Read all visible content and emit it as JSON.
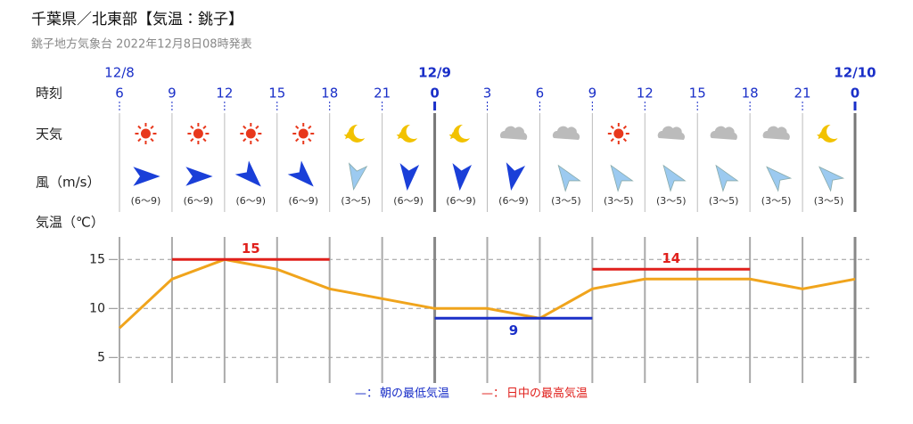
{
  "chart_data": {
    "type": "line",
    "title": "千葉県／北東部【気温：銚子】",
    "subtitle": "銚子地方気象台 2022年12月8日08時発表",
    "row_labels": {
      "time": "時刻",
      "weather": "天気",
      "wind": "風（m/s）",
      "temp": "気温（℃）"
    },
    "day_labels": [
      "12/8",
      null,
      null,
      null,
      null,
      null,
      "12/9",
      null,
      null,
      null,
      null,
      null,
      null,
      null,
      "12/10"
    ],
    "categories": [
      "6",
      "9",
      "12",
      "15",
      "18",
      "21",
      "0",
      "3",
      "6",
      "9",
      "12",
      "15",
      "18",
      "21",
      "0"
    ],
    "wind_labels": [
      "(6～9)",
      "(6～9)",
      "(6～9)",
      "(6～9)",
      "(3～5)",
      "(6～9)",
      "(6～9)",
      "(6～9)",
      "(3～5)",
      "(3～5)",
      "(3～5)",
      "(3～5)",
      "(3～5)",
      "(3～5)"
    ],
    "ylim": [
      2.3,
      17.3
    ],
    "yticks": [
      5,
      10,
      15
    ],
    "grid": true,
    "series": [
      {
        "color": "#f0a41c",
        "values": [
          8,
          13,
          15,
          14,
          12,
          11,
          10,
          10,
          9,
          12,
          13,
          13,
          13,
          12,
          13
        ]
      },
      {
        "name": "朝の最低気温",
        "color": "#1a2fc8",
        "values": [
          null,
          null,
          null,
          null,
          null,
          null,
          9,
          9,
          9,
          9,
          null,
          null,
          null,
          null,
          null
        ]
      },
      {
        "name": "日中の最高気温",
        "color": "#e0201c",
        "values": [
          null,
          15,
          15,
          15,
          15,
          null,
          null,
          null,
          null,
          14,
          14,
          14,
          14,
          null,
          null
        ]
      }
    ]
  }
}
